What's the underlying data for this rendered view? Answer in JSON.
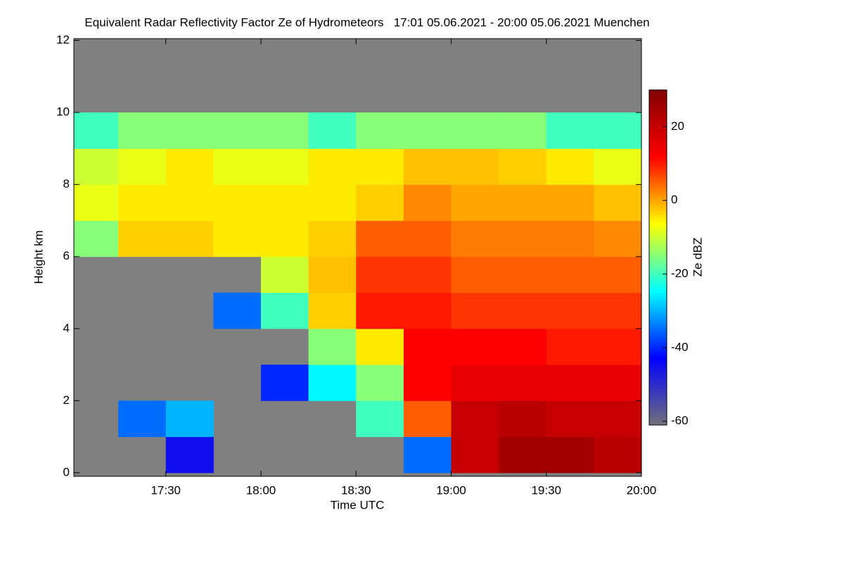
{
  "chart_data": {
    "type": "heatmap",
    "title": "Equivalent Radar Reflectivity Factor Ze of Hydrometeors   17:01 05.06.2021 - 20:00 05.06.2021 Muenchen",
    "x_label": "Time UTC",
    "y_label": "Height km",
    "colorbar_label": "Ze dBZ",
    "x": [
      17.125,
      17.375,
      17.625,
      17.875,
      18.125,
      18.375,
      18.625,
      18.875,
      19.125,
      19.375,
      19.625,
      19.875
    ],
    "y": [
      0.5,
      1.5,
      2.5,
      3.5,
      4.5,
      5.5,
      6.5,
      7.5,
      8.5,
      9.5,
      10.5,
      11.5
    ],
    "z": [
      [
        null,
        null,
        -45,
        null,
        null,
        null,
        null,
        -35,
        20,
        25,
        25,
        22
      ],
      [
        null,
        -35,
        -30,
        null,
        null,
        null,
        -20,
        5,
        20,
        22,
        20,
        20
      ],
      [
        null,
        null,
        null,
        null,
        -40,
        -25,
        -15,
        12,
        15,
        15,
        15,
        15
      ],
      [
        null,
        null,
        null,
        null,
        null,
        -15,
        -5,
        12,
        12,
        12,
        10,
        10
      ],
      [
        null,
        null,
        null,
        -35,
        -20,
        -3,
        10,
        10,
        8,
        8,
        8,
        8
      ],
      [
        null,
        null,
        null,
        null,
        -10,
        -2,
        8,
        8,
        5,
        5,
        5,
        5
      ],
      [
        -15,
        -3,
        -3,
        -5,
        -5,
        -3,
        5,
        5,
        3,
        3,
        3,
        2
      ],
      [
        -8,
        -5,
        -5,
        -5,
        -5,
        -5,
        -3,
        2,
        0,
        0,
        0,
        -2
      ],
      [
        -10,
        -8,
        -5,
        -8,
        -8,
        -5,
        -5,
        -2,
        -2,
        -3,
        -5,
        -8
      ],
      [
        -20,
        -15,
        -15,
        -15,
        -15,
        -20,
        -15,
        -15,
        -15,
        -15,
        -20,
        -20
      ],
      [
        null,
        null,
        null,
        null,
        null,
        null,
        null,
        null,
        null,
        null,
        null,
        null
      ],
      [
        null,
        null,
        null,
        null,
        null,
        null,
        null,
        null,
        null,
        null,
        null,
        null
      ]
    ],
    "xlim": [
      17.0167,
      20.0
    ],
    "xticks": [
      {
        "value": 17.5,
        "label": "17:30"
      },
      {
        "value": 18.0,
        "label": "18:00"
      },
      {
        "value": 18.5,
        "label": "18:30"
      },
      {
        "value": 19.0,
        "label": "19:00"
      },
      {
        "value": 19.5,
        "label": "19:30"
      },
      {
        "value": 20.0,
        "label": "20:00"
      }
    ],
    "ylim": [
      -0.1,
      12.05
    ],
    "yticks": [
      0,
      2,
      4,
      6,
      8,
      10,
      12
    ],
    "zlim": [
      -61,
      30
    ],
    "zticks": [
      -60,
      -40,
      -20,
      0,
      20
    ],
    "colormap": [
      "#70707a",
      "#0000ff",
      "#00ffff",
      "#ffff00",
      "#ff0000",
      "#800000"
    ],
    "background_color": "#808080"
  }
}
